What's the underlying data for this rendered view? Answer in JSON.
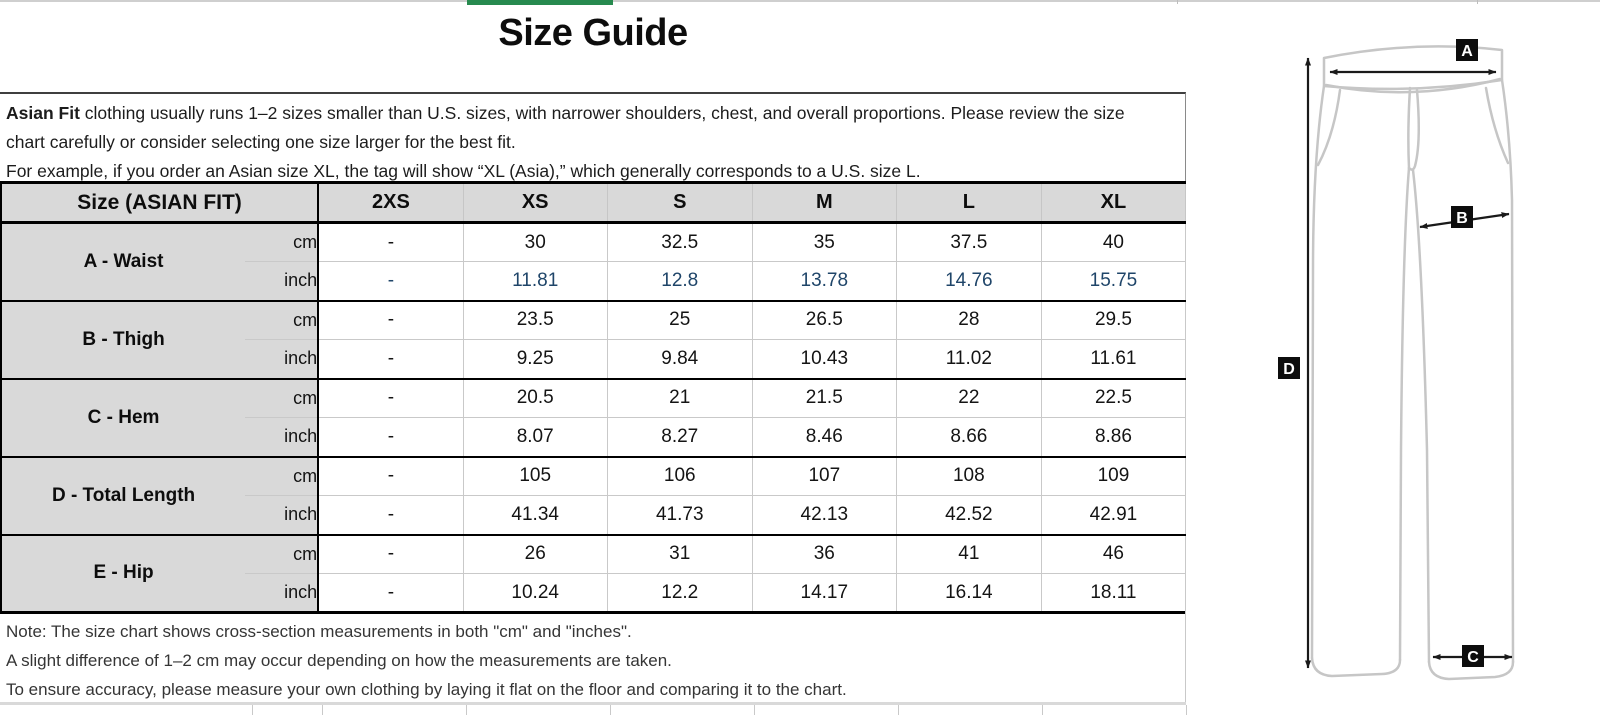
{
  "title": "Size Guide",
  "intro": {
    "bold_lead": "Asian Fit",
    "line1a": " clothing usually runs 1–2 sizes smaller than U.S. sizes, with narrower shoulders, chest, and overall proportions. Please review the size",
    "line1b": "chart carefully or consider selecting one size larger for the best fit.",
    "line2": "For example, if you order an Asian size XL, the tag will show “XL (Asia),” which generally corresponds to a U.S. size L."
  },
  "table": {
    "corner_label": "Size (ASIAN FIT)",
    "sizes": [
      "2XS",
      "XS",
      "S",
      "M",
      "L",
      "XL"
    ],
    "rows": [
      {
        "label": "A - Waist",
        "units": [
          {
            "unit": "cm",
            "highlight": false,
            "values": [
              "-",
              "30",
              "32.5",
              "35",
              "37.5",
              "40"
            ]
          },
          {
            "unit": "inch",
            "highlight": true,
            "values": [
              "-",
              "11.81",
              "12.8",
              "13.78",
              "14.76",
              "15.75"
            ]
          }
        ]
      },
      {
        "label": "B - Thigh",
        "units": [
          {
            "unit": "cm",
            "highlight": false,
            "values": [
              "-",
              "23.5",
              "25",
              "26.5",
              "28",
              "29.5"
            ]
          },
          {
            "unit": "inch",
            "highlight": false,
            "values": [
              "-",
              "9.25",
              "9.84",
              "10.43",
              "11.02",
              "11.61"
            ]
          }
        ]
      },
      {
        "label": "C - Hem",
        "units": [
          {
            "unit": "cm",
            "highlight": false,
            "values": [
              "-",
              "20.5",
              "21",
              "21.5",
              "22",
              "22.5"
            ]
          },
          {
            "unit": "inch",
            "highlight": false,
            "values": [
              "-",
              "8.07",
              "8.27",
              "8.46",
              "8.66",
              "8.86"
            ]
          }
        ]
      },
      {
        "label": "D - Total Length",
        "units": [
          {
            "unit": "cm",
            "highlight": false,
            "values": [
              "-",
              "105",
              "106",
              "107",
              "108",
              "109"
            ]
          },
          {
            "unit": "inch",
            "highlight": false,
            "values": [
              "-",
              "41.34",
              "41.73",
              "42.13",
              "42.52",
              "42.91"
            ]
          }
        ]
      },
      {
        "label": "E - Hip",
        "units": [
          {
            "unit": "cm",
            "highlight": false,
            "values": [
              "-",
              "26",
              "31",
              "36",
              "41",
              "46"
            ]
          },
          {
            "unit": "inch",
            "highlight": false,
            "values": [
              "-",
              "10.24",
              "12.2",
              "14.17",
              "16.14",
              "18.11"
            ]
          }
        ]
      }
    ]
  },
  "notes": [
    "Note: The size chart shows cross-section measurements in both \"cm\" and \"inches\".",
    "A slight difference of 1–2 cm may occur depending on how the measurements are taken.",
    "To ensure accuracy, please measure your own clothing by laying it flat on the floor and comparing it to the chart."
  ],
  "diagram": {
    "labels": [
      "A",
      "B",
      "C",
      "D"
    ]
  },
  "colors": {
    "accent_green": "#278a4f",
    "highlight_blue": "#1f4569",
    "header_gray": "#d9d9d9"
  }
}
